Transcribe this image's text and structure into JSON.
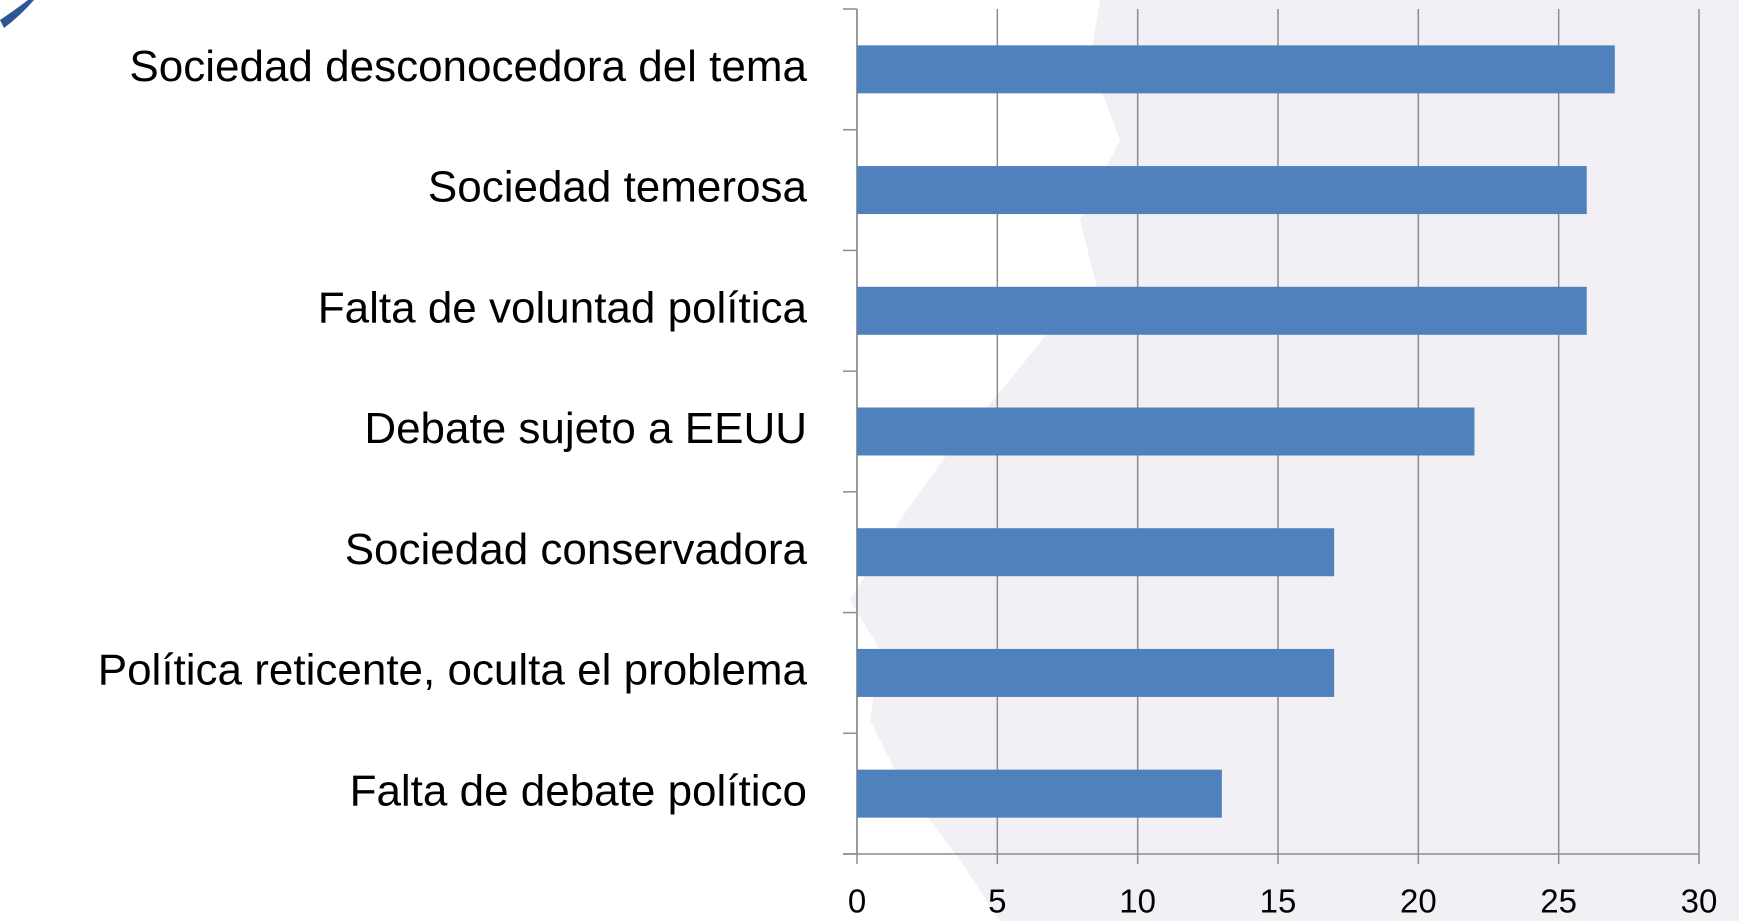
{
  "chart_data": {
    "type": "bar",
    "orientation": "horizontal",
    "categories": [
      "Sociedad desconocedora del tema",
      "Sociedad temerosa",
      "Falta de voluntad política",
      "Debate sujeto a EEUU",
      "Sociedad conservadora",
      "Política reticente, oculta el problema",
      "Falta de debate político"
    ],
    "values": [
      27,
      26,
      26,
      22,
      17,
      17,
      13
    ],
    "color": "#4f81bd",
    "xlim": [
      0,
      30
    ],
    "xticks": [
      0,
      5,
      10,
      15,
      20,
      25,
      30
    ],
    "grid": true
  }
}
